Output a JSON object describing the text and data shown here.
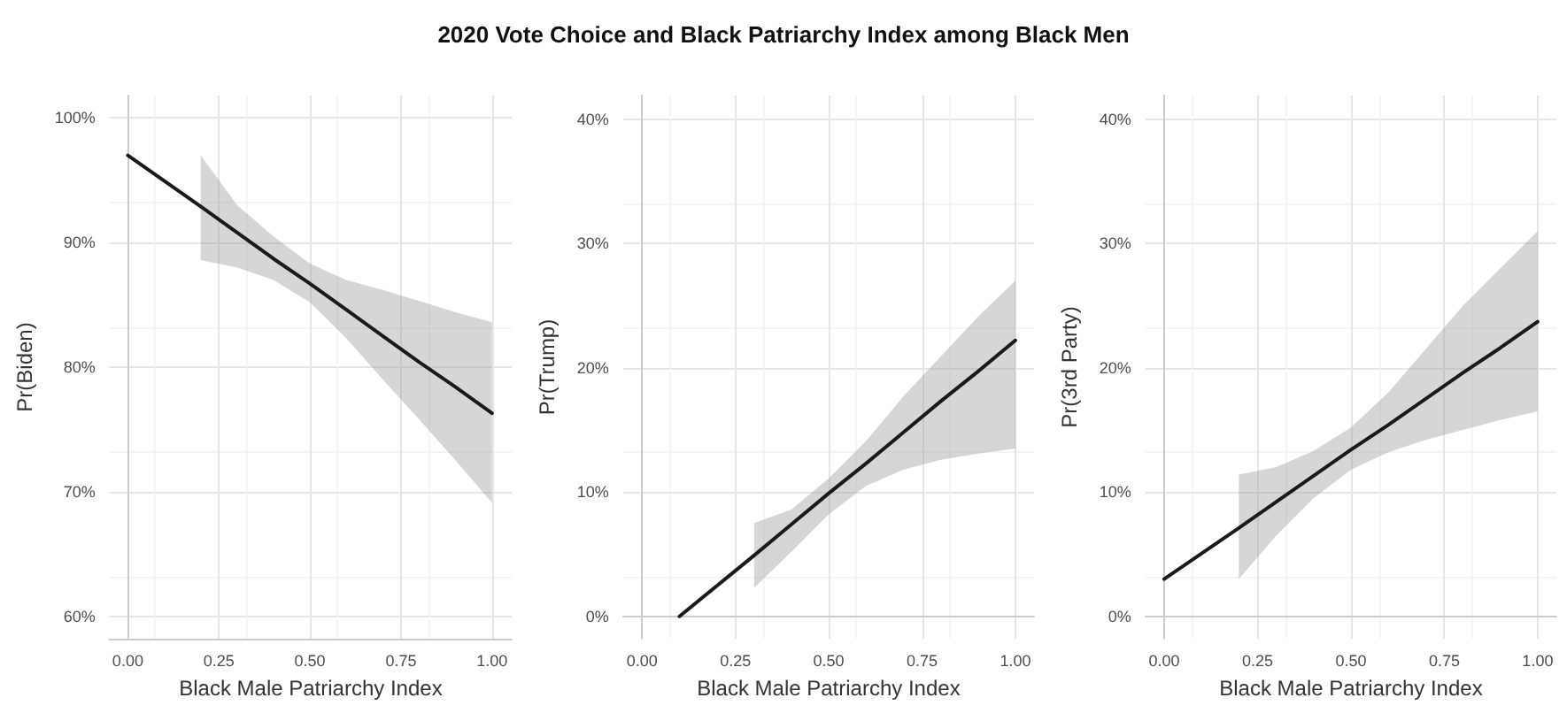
{
  "chart_data": [
    {
      "type": "line",
      "xlabel": "Black Male Patriarchy Index",
      "ylabel": "Pr(Biden)",
      "marker": "none",
      "line_style": "solid",
      "grid": true,
      "xlim": [
        -0.05,
        1.054
      ],
      "xticks": [
        {
          "value": 0,
          "label": "0.00"
        },
        {
          "value": 0.25,
          "label": "0.25"
        },
        {
          "value": 0.5,
          "label": "0.50"
        },
        {
          "value": 0.75,
          "label": "0.75"
        },
        {
          "value": 1,
          "label": "1.00"
        }
      ],
      "ylim": [
        58.2,
        101.8
      ],
      "yticks": [
        {
          "value": 60,
          "label": "60%"
        },
        {
          "value": 70,
          "label": "70%"
        },
        {
          "value": 80,
          "label": "80%"
        },
        {
          "value": 90,
          "label": "90%"
        },
        {
          "value": 100,
          "label": "100%"
        }
      ],
      "series": [
        {
          "color": "#1a1a1a",
          "x": [
            0,
            0.2,
            0.3,
            0.4,
            0.5,
            0.6,
            0.7,
            0.8,
            0.9,
            1
          ],
          "values": [
            97.0,
            92.9,
            90.8,
            88.7,
            86.7,
            84.6,
            82.5,
            80.4,
            78.4,
            76.3
          ],
          "lower": [
            null,
            88.6,
            88.0,
            87.0,
            85.2,
            82.3,
            79.0,
            75.8,
            72.5,
            69.1
          ],
          "upper": [
            null,
            97.0,
            93.0,
            90.5,
            88.3,
            87.0,
            86.2,
            85.3,
            84.4,
            83.6
          ]
        }
      ]
    },
    {
      "type": "line",
      "title": "2020 Vote Choice and Black Patriarchy Index among Black Men",
      "xlabel": "Black Male Patriarchy Index",
      "ylabel": "Pr(Trump)",
      "marker": "none",
      "line_style": "solid",
      "grid": true,
      "xlim": [
        -0.051,
        1.05
      ],
      "xticks": [
        {
          "value": 0,
          "label": "0.00"
        },
        {
          "value": 0.25,
          "label": "0.25"
        },
        {
          "value": 0.5,
          "label": "0.50"
        },
        {
          "value": 0.75,
          "label": "0.75"
        },
        {
          "value": 1,
          "label": "1.00"
        }
      ],
      "ylim": [
        -1.8,
        41.9
      ],
      "yticks": [
        {
          "value": 0,
          "label": "0%"
        },
        {
          "value": 10,
          "label": "10%"
        },
        {
          "value": 20,
          "label": "20%"
        },
        {
          "value": 30,
          "label": "30%"
        },
        {
          "value": 40,
          "label": "40%"
        }
      ],
      "series": [
        {
          "color": "#1a1a1a",
          "x": [
            0.1,
            0.3,
            0.4,
            0.5,
            0.6,
            0.7,
            0.8,
            0.9,
            1
          ],
          "values": [
            0,
            4.9,
            7.4,
            9.9,
            12.3,
            14.8,
            17.3,
            19.7,
            22.2
          ],
          "lower": [
            null,
            2.3,
            5.2,
            8.2,
            10.5,
            11.8,
            12.6,
            13.1,
            13.5
          ],
          "upper": [
            null,
            7.5,
            8.6,
            11.1,
            14.1,
            17.7,
            20.9,
            24.1,
            27.0
          ]
        }
      ]
    },
    {
      "type": "line",
      "xlabel": "Black Male Patriarchy Index",
      "ylabel": "Pr(3rd Party)",
      "marker": "none",
      "line_style": "solid",
      "grid": true,
      "xlim": [
        -0.05,
        1.05
      ],
      "xticks": [
        {
          "value": 0,
          "label": "0.00"
        },
        {
          "value": 0.25,
          "label": "0.25"
        },
        {
          "value": 0.5,
          "label": "0.50"
        },
        {
          "value": 0.75,
          "label": "0.75"
        },
        {
          "value": 1,
          "label": "1.00"
        }
      ],
      "ylim": [
        -1.8,
        41.9
      ],
      "yticks": [
        {
          "value": 0,
          "label": "0%"
        },
        {
          "value": 10,
          "label": "10%"
        },
        {
          "value": 20,
          "label": "20%"
        },
        {
          "value": 30,
          "label": "30%"
        },
        {
          "value": 40,
          "label": "40%"
        }
      ],
      "series": [
        {
          "color": "#1a1a1a",
          "x": [
            0,
            0.2,
            0.3,
            0.4,
            0.5,
            0.6,
            0.7,
            0.8,
            0.9,
            1
          ],
          "values": [
            3.0,
            7.1,
            9.2,
            11.3,
            13.4,
            15.4,
            17.5,
            19.6,
            21.6,
            23.7
          ],
          "lower": [
            null,
            3.0,
            6.5,
            9.5,
            11.8,
            13.2,
            14.2,
            15.0,
            15.8,
            16.5
          ],
          "upper": [
            null,
            11.4,
            12.0,
            13.3,
            15.2,
            18.0,
            21.5,
            25.0,
            28.0,
            31.0
          ]
        }
      ]
    }
  ]
}
